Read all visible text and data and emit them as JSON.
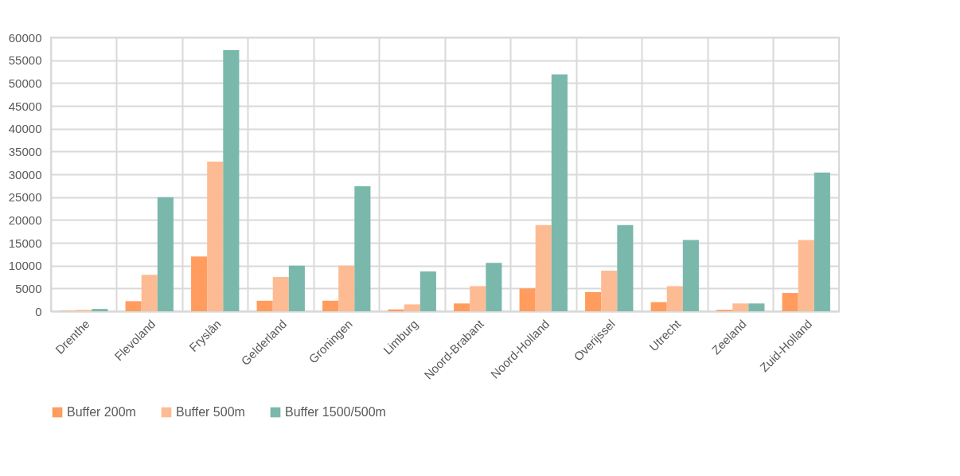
{
  "chart_data": {
    "type": "bar",
    "categories": [
      "Drenthe",
      "Flevoland",
      "Fryslân",
      "Gelderland",
      "Groningen",
      "Limburg",
      "Noord-Brabant",
      "Noord-Holland",
      "Overijssel",
      "Utrecht",
      "Zeeland",
      "Zuid-Holland"
    ],
    "series": [
      {
        "name": "Buffer 200m",
        "color": "#ff9c5e",
        "values": [
          100,
          2200,
          12000,
          2300,
          2300,
          400,
          1700,
          5000,
          4200,
          2000,
          300,
          4000
        ]
      },
      {
        "name": "Buffer 500m",
        "color": "#fdbb94",
        "values": [
          300,
          8000,
          32800,
          7500,
          10000,
          1500,
          5500,
          18900,
          8900,
          5500,
          1700,
          15600
        ]
      },
      {
        "name": "Buffer 1500/500m",
        "color": "#7ab8ac",
        "values": [
          500,
          25000,
          57200,
          10000,
          27400,
          8700,
          10600,
          51900,
          18900,
          15600,
          1700,
          30400
        ]
      }
    ],
    "ylim": [
      0,
      60000
    ],
    "yticks": [
      0,
      5000,
      10000,
      15000,
      20000,
      25000,
      30000,
      35000,
      40000,
      45000,
      50000,
      55000,
      60000
    ],
    "grid": true,
    "legend": "bottom"
  }
}
